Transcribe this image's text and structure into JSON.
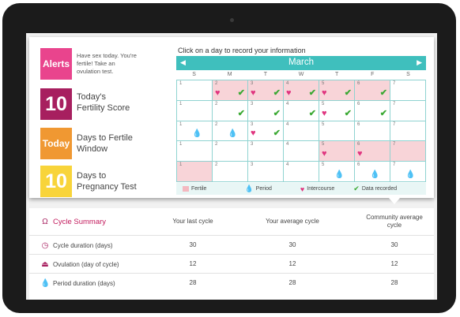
{
  "alerts": {
    "tile": "Alerts",
    "text": "Have sex today. You're fertile! Take an ovulation test."
  },
  "score": {
    "value": "10",
    "label": "Today's Fertility Score"
  },
  "window": {
    "tile": "Today",
    "label": "Days to Fertile Window"
  },
  "pregnancy": {
    "value": "10",
    "label": "Days to Pregnancy Test"
  },
  "calendar": {
    "instruction": "Click on a day to record your information",
    "month": "March",
    "days_of_week": [
      "S",
      "M",
      "T",
      "W",
      "T",
      "F",
      "S"
    ],
    "cells": [
      {
        "n": "1",
        "fertile": false,
        "heart": false,
        "check": false,
        "drop": false
      },
      {
        "n": "2",
        "fertile": true,
        "heart": true,
        "check": true,
        "drop": false
      },
      {
        "n": "3",
        "fertile": true,
        "heart": true,
        "check": true,
        "drop": false
      },
      {
        "n": "4",
        "fertile": true,
        "heart": true,
        "check": true,
        "drop": false
      },
      {
        "n": "5",
        "fertile": true,
        "heart": true,
        "check": true,
        "drop": false
      },
      {
        "n": "6",
        "fertile": true,
        "heart": false,
        "check": true,
        "drop": false
      },
      {
        "n": "7",
        "fertile": false,
        "heart": false,
        "check": false,
        "drop": false
      },
      {
        "n": "1",
        "fertile": false,
        "heart": false,
        "check": false,
        "drop": false
      },
      {
        "n": "2",
        "fertile": false,
        "heart": false,
        "check": true,
        "drop": false
      },
      {
        "n": "3",
        "fertile": false,
        "heart": false,
        "check": true,
        "drop": false
      },
      {
        "n": "4",
        "fertile": false,
        "heart": false,
        "check": true,
        "drop": false
      },
      {
        "n": "5",
        "fertile": false,
        "heart": true,
        "check": true,
        "drop": false
      },
      {
        "n": "6",
        "fertile": false,
        "heart": false,
        "check": true,
        "drop": false
      },
      {
        "n": "7",
        "fertile": false,
        "heart": false,
        "check": false,
        "drop": false
      },
      {
        "n": "1",
        "fertile": false,
        "heart": false,
        "check": false,
        "drop": true
      },
      {
        "n": "2",
        "fertile": false,
        "heart": false,
        "check": false,
        "drop": true
      },
      {
        "n": "3",
        "fertile": false,
        "heart": true,
        "check": true,
        "drop": false
      },
      {
        "n": "4",
        "fertile": false,
        "heart": false,
        "check": false,
        "drop": false
      },
      {
        "n": "5",
        "fertile": false,
        "heart": false,
        "check": false,
        "drop": false
      },
      {
        "n": "6",
        "fertile": false,
        "heart": false,
        "check": false,
        "drop": false
      },
      {
        "n": "7",
        "fertile": false,
        "heart": false,
        "check": false,
        "drop": false
      },
      {
        "n": "1",
        "fertile": false,
        "heart": false,
        "check": false,
        "drop": false
      },
      {
        "n": "2",
        "fertile": false,
        "heart": false,
        "check": false,
        "drop": false
      },
      {
        "n": "3",
        "fertile": false,
        "heart": false,
        "check": false,
        "drop": false
      },
      {
        "n": "4",
        "fertile": false,
        "heart": false,
        "check": false,
        "drop": false
      },
      {
        "n": "5",
        "fertile": true,
        "heart": true,
        "check": false,
        "drop": false
      },
      {
        "n": "6",
        "fertile": true,
        "heart": true,
        "check": false,
        "drop": false
      },
      {
        "n": "7",
        "fertile": true,
        "heart": false,
        "check": false,
        "drop": false
      },
      {
        "n": "1",
        "fertile": true,
        "heart": false,
        "check": false,
        "drop": false
      },
      {
        "n": "2",
        "fertile": false,
        "heart": false,
        "check": false,
        "drop": false
      },
      {
        "n": "3",
        "fertile": false,
        "heart": false,
        "check": false,
        "drop": false
      },
      {
        "n": "4",
        "fertile": false,
        "heart": false,
        "check": false,
        "drop": false
      },
      {
        "n": "5",
        "fertile": false,
        "heart": false,
        "check": false,
        "drop": true
      },
      {
        "n": "6",
        "fertile": false,
        "heart": false,
        "check": false,
        "drop": true
      },
      {
        "n": "7",
        "fertile": false,
        "heart": false,
        "check": false,
        "drop": true
      }
    ],
    "legend": {
      "fertile": "Fertile",
      "period": "Period",
      "intercourse": "Intercourse",
      "recorded": "Data recorded"
    }
  },
  "summary": {
    "title": "Cycle Summary",
    "col1": "Your last cycle",
    "col2": "Your average cycle",
    "col3": "Community average cycle",
    "rows": [
      {
        "label": "Cycle duration (days)",
        "v1": "30",
        "v2": "30",
        "v3": "30"
      },
      {
        "label": "Ovulation (day of cycle)",
        "v1": "12",
        "v2": "12",
        "v3": "12"
      },
      {
        "label": "Period duration (days)",
        "v1": "28",
        "v2": "28",
        "v3": "28"
      }
    ]
  }
}
